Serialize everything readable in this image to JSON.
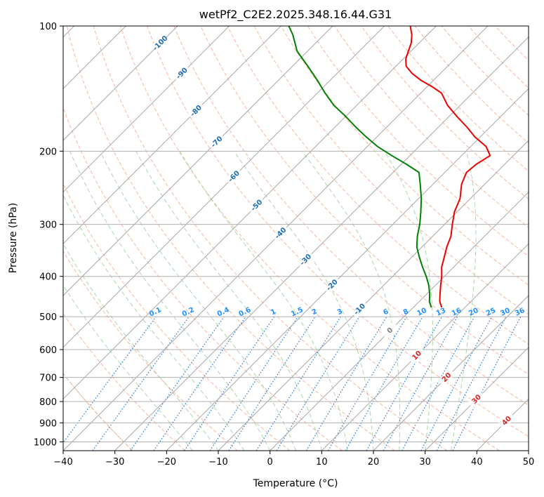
{
  "chart_data": {
    "type": "line",
    "subtype": "skew-t-log-p",
    "title": "wetPf2_C2E2.2025.348.16.44.G31",
    "xlabel": "Temperature (°C)",
    "ylabel": "Pressure (hPa)",
    "xlim": [
      -40,
      50
    ],
    "ylim": [
      1050,
      100
    ],
    "x_ticks": [
      -40,
      -30,
      -20,
      -10,
      0,
      10,
      20,
      30,
      40,
      50
    ],
    "y_ticks": [
      100,
      200,
      300,
      400,
      500,
      600,
      700,
      800,
      900,
      1000
    ],
    "grid": true,
    "colors": {
      "temperature": "#ee0000",
      "dewpoint": "#008000",
      "isotherm": "#a8a8a8",
      "dry_adiabat": "#f4a58a",
      "moist_adiabat": "#8cc98c",
      "mixing_ratio": "#1f77d4",
      "mixing_ratio_label": "#1e90ff",
      "isotherm_label": "#1f6fb2",
      "warm_isotherm_label": "#d62728",
      "zero_isotherm_label": "#808080",
      "frame_curve": "#d2b48c"
    },
    "series": [
      {
        "name": "Temperature",
        "p": [
          475,
          460,
          440,
          420,
          400,
          380,
          360,
          340,
          320,
          300,
          280,
          260,
          240,
          225,
          215,
          205,
          195,
          185,
          175,
          165,
          155,
          145,
          140,
          135,
          130,
          125,
          120,
          115,
          110,
          105,
          100
        ],
        "t": [
          5.5,
          4.0,
          2.5,
          1.0,
          -0.5,
          -2.3,
          -3.7,
          -5.2,
          -6.5,
          -8.5,
          -10.5,
          -12.0,
          -14.5,
          -15.8,
          -15.5,
          -14.5,
          -17.0,
          -21.0,
          -24.5,
          -28.5,
          -32.5,
          -36.0,
          -39.0,
          -42.5,
          -45.5,
          -48.0,
          -49.5,
          -50.5,
          -51.5,
          -53.0,
          -55.0
        ]
      },
      {
        "name": "Dewpoint",
        "p": [
          475,
          460,
          440,
          420,
          400,
          380,
          360,
          340,
          320,
          300,
          280,
          260,
          240,
          225,
          215,
          205,
          195,
          185,
          175,
          165,
          155,
          145,
          135,
          125,
          115,
          105,
          100
        ],
        "t": [
          3.5,
          2.0,
          0.5,
          -1.3,
          -3.5,
          -6.0,
          -8.5,
          -11.0,
          -13.0,
          -14.8,
          -17.0,
          -19.5,
          -22.5,
          -25.0,
          -29.0,
          -33.5,
          -38.0,
          -42.0,
          -46.0,
          -50.0,
          -54.5,
          -58.5,
          -62.5,
          -67.0,
          -72.0,
          -76.0,
          -78.5
        ]
      }
    ],
    "isotherms": [
      -100,
      -90,
      -80,
      -70,
      -60,
      -50,
      -40,
      -30,
      -20,
      -10,
      0,
      10,
      20,
      30,
      40
    ],
    "isotherm_labels": [
      {
        "text": "-100",
        "t": -100,
        "p": 110
      },
      {
        "text": "-90",
        "t": -90,
        "p": 130
      },
      {
        "text": "-80",
        "t": -80,
        "p": 160
      },
      {
        "text": "-70",
        "t": -70,
        "p": 190
      },
      {
        "text": "-60",
        "t": -60,
        "p": 230
      },
      {
        "text": "-50",
        "t": -50,
        "p": 270
      },
      {
        "text": "-40",
        "t": -40,
        "p": 315
      },
      {
        "text": "-30",
        "t": -30,
        "p": 365
      },
      {
        "text": "-20",
        "t": -20,
        "p": 420
      },
      {
        "text": "-10",
        "t": -10,
        "p": 480
      },
      {
        "text": "0",
        "t": 0,
        "p": 540
      },
      {
        "text": "10",
        "t": 10,
        "p": 620
      },
      {
        "text": "20",
        "t": 20,
        "p": 700
      },
      {
        "text": "30",
        "t": 30,
        "p": 790
      },
      {
        "text": "40",
        "t": 40,
        "p": 890
      }
    ],
    "mixing_ratios": [
      "0.1",
      "0.2",
      "0.4",
      "0.6",
      "1",
      "1.5",
      "2",
      "3",
      "4",
      "6",
      "8",
      "10",
      "13",
      "16",
      "20",
      "25",
      "30",
      "36"
    ],
    "mixing_ratio_label_pressure": 500,
    "dry_adiabats": [
      -30,
      -20,
      -10,
      0,
      10,
      20,
      30,
      40,
      50,
      60,
      70,
      80,
      90,
      100,
      110,
      120,
      130,
      140,
      150,
      160,
      170,
      180
    ],
    "moist_adiabats": [
      -15,
      -10,
      -5,
      0,
      5,
      10,
      15,
      20,
      25,
      30,
      35
    ]
  }
}
